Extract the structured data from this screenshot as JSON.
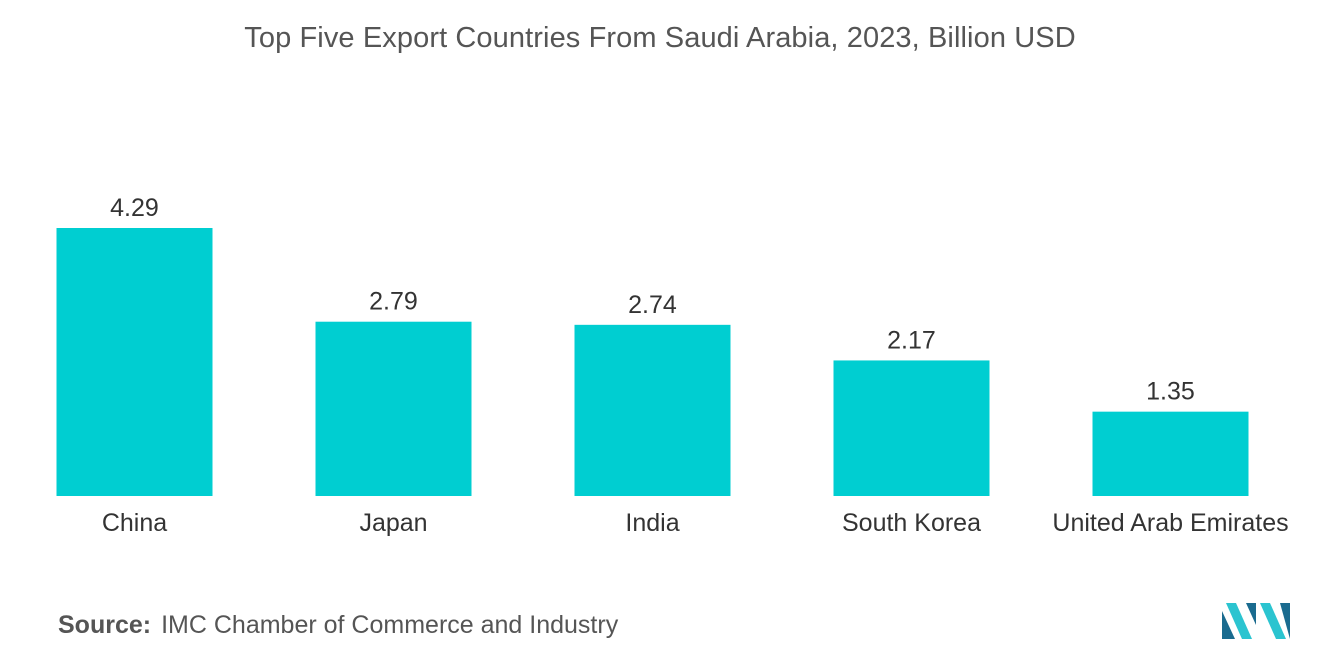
{
  "chart_data": {
    "type": "bar",
    "title": "Top Five Export Countries From Saudi Arabia, 2023, Billion USD",
    "categories": [
      "China",
      "Japan",
      "India",
      "South Korea",
      "United Arab Emirates"
    ],
    "values": [
      4.29,
      2.79,
      2.74,
      2.17,
      1.35
    ],
    "data_labels": [
      "4.29",
      "2.79",
      "2.74",
      "2.17",
      "1.35"
    ],
    "xlabel": "",
    "ylabel": "",
    "ylim": [
      0,
      4.29
    ],
    "grid": false,
    "legend": "none",
    "bar_color": "#00CED1"
  },
  "source": {
    "prefix": "Source:",
    "text": "IMC Chamber of Commerce and Industry"
  },
  "logo": {
    "icon": "mordor-intelligence-logo-icon",
    "colors": [
      "#1A6B8F",
      "#2BC4D0"
    ]
  }
}
